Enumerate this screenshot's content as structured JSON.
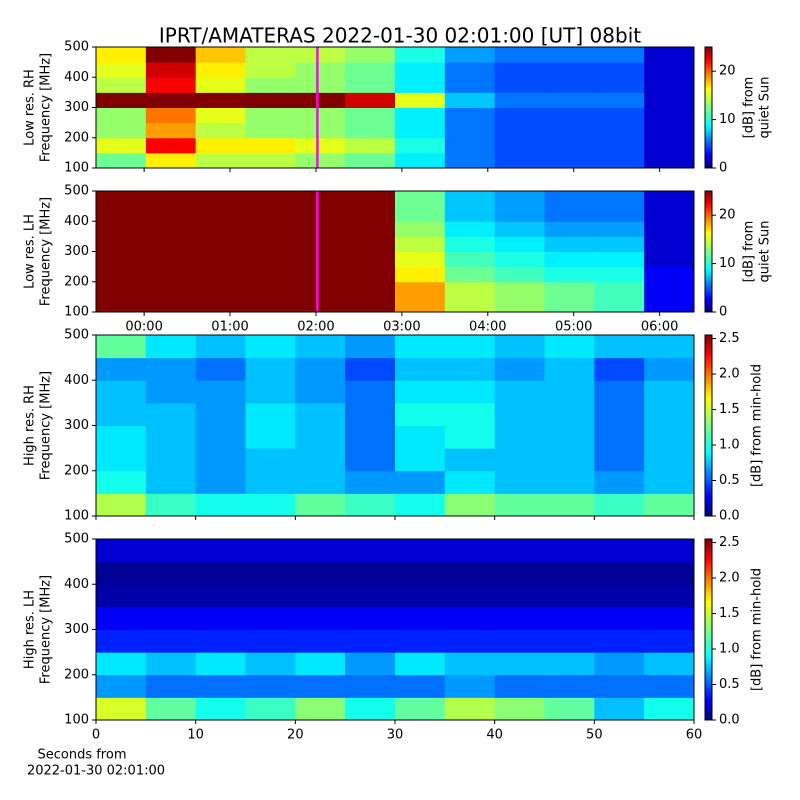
{
  "title": "IPRT/AMATERAS 2022-01-30 02:01:00 [UT]   08bit",
  "chart_data": [
    {
      "type": "heatmap",
      "ylabel": [
        "Low res. RH",
        "Frequency [MHz]"
      ],
      "colorbar_label": [
        "[dB] from",
        "quiet Sun"
      ],
      "xlim": [
        -0.56,
        6.4
      ],
      "xticks": [
        0,
        1,
        2,
        3,
        4,
        5,
        6
      ],
      "ylim": [
        100,
        500
      ],
      "yticks": [
        100,
        200,
        300,
        400,
        500
      ],
      "clim": [
        0,
        25
      ],
      "cticks": [
        0,
        10,
        20
      ],
      "cursor": {
        "x": 2.0167,
        "color": "#ff00ff"
      },
      "z": [
        [
          12,
          16,
          14,
          14,
          13,
          12,
          9,
          6,
          5,
          5,
          5,
          2
        ],
        [
          15,
          22,
          16,
          16,
          15,
          14,
          10,
          6,
          5,
          5,
          5,
          2
        ],
        [
          13,
          18,
          14,
          13,
          13,
          12,
          9,
          6,
          5,
          5,
          5,
          2
        ],
        [
          13,
          19,
          15,
          13,
          13,
          12,
          9,
          6,
          5,
          5,
          5,
          2
        ],
        [
          25,
          25,
          25,
          25,
          25,
          23,
          15,
          8,
          6,
          6,
          6,
          2
        ],
        [
          14,
          22,
          15,
          13,
          13,
          12,
          9,
          6,
          5,
          5,
          5,
          2
        ],
        [
          15,
          23,
          16,
          14,
          13,
          12,
          9,
          6,
          5,
          5,
          5,
          2
        ],
        [
          16,
          25,
          17,
          14,
          14,
          13,
          10,
          7,
          6,
          6,
          6,
          2
        ]
      ]
    },
    {
      "type": "heatmap",
      "ylabel": [
        "Low res. LH",
        "Frequency [MHz]"
      ],
      "colorbar_label": [
        "[dB] from",
        "quiet Sun"
      ],
      "xlim": [
        -0.56,
        6.4
      ],
      "xticks": [
        {
          "value": 0,
          "label": "00:00"
        },
        {
          "value": 1,
          "label": "01:00"
        },
        {
          "value": 2,
          "label": "02:00"
        },
        {
          "value": 3,
          "label": "03:00"
        },
        {
          "value": 4,
          "label": "04:00"
        },
        {
          "value": 5,
          "label": "05:00"
        },
        {
          "value": 6,
          "label": "06:00"
        }
      ],
      "ylim": [
        100,
        500
      ],
      "yticks": [
        100,
        200,
        300,
        400,
        500
      ],
      "clim": [
        0,
        25
      ],
      "cticks": [
        0,
        10,
        20
      ],
      "cursor": {
        "x": 2.0167,
        "color": "#ff00ff"
      },
      "z": [
        [
          25,
          25,
          25,
          25,
          25,
          25,
          18,
          14,
          13,
          12,
          11,
          3
        ],
        [
          25,
          25,
          25,
          25,
          25,
          25,
          18,
          14,
          13,
          12,
          11,
          3
        ],
        [
          25,
          25,
          25,
          25,
          25,
          25,
          16,
          12,
          11,
          10,
          10,
          3
        ],
        [
          25,
          25,
          25,
          25,
          25,
          25,
          15,
          11,
          10,
          9,
          9,
          2
        ],
        [
          25,
          25,
          25,
          25,
          25,
          25,
          14,
          10,
          9,
          8,
          8,
          2
        ],
        [
          25,
          25,
          25,
          25,
          25,
          25,
          13,
          9,
          8,
          7,
          7,
          2
        ],
        [
          25,
          25,
          25,
          25,
          25,
          25,
          12,
          8,
          7,
          6,
          6,
          2
        ],
        [
          25,
          25,
          25,
          25,
          25,
          25,
          12,
          8,
          7,
          6,
          6,
          2
        ]
      ]
    },
    {
      "type": "heatmap",
      "ylabel": [
        "High res. RH",
        "Frequency [MHz]"
      ],
      "colorbar_label": [
        "[dB] from min-hold"
      ],
      "xlim": [
        0,
        60
      ],
      "xticks": [
        0,
        10,
        20,
        30,
        40,
        50,
        60
      ],
      "ylim": [
        100,
        500
      ],
      "yticks": [
        100,
        200,
        300,
        400,
        500
      ],
      "clim": [
        0,
        2.55
      ],
      "cticks": [
        {
          "value": 0,
          "label": "0.0"
        },
        {
          "value": 0.5,
          "label": "0.5"
        },
        {
          "value": 1,
          "label": "1.0"
        },
        {
          "value": 1.5,
          "label": "1.5"
        },
        {
          "value": 2,
          "label": "2.0"
        },
        {
          "value": 2.5,
          "label": "2.5"
        }
      ],
      "z": [
        [
          1.4,
          1.1,
          1.0,
          1.0,
          1.2,
          1.1,
          1.0,
          1.3,
          1.2,
          1.2,
          1.1,
          1.2
        ],
        [
          1.0,
          0.8,
          0.7,
          0.8,
          0.8,
          0.7,
          0.7,
          0.9,
          0.8,
          0.8,
          0.7,
          0.8
        ],
        [
          0.9,
          0.8,
          0.7,
          0.8,
          0.8,
          0.6,
          0.9,
          0.8,
          0.8,
          0.8,
          0.6,
          0.8
        ],
        [
          0.9,
          0.8,
          0.7,
          0.9,
          0.8,
          0.6,
          0.9,
          1.0,
          0.8,
          0.8,
          0.6,
          0.8
        ],
        [
          0.8,
          0.8,
          0.7,
          0.9,
          0.8,
          0.6,
          1.0,
          1.0,
          0.8,
          0.8,
          0.6,
          0.8
        ],
        [
          0.8,
          0.7,
          0.7,
          0.8,
          0.7,
          0.6,
          0.9,
          0.9,
          0.8,
          0.8,
          0.6,
          0.8
        ],
        [
          0.7,
          0.7,
          0.6,
          0.8,
          0.7,
          0.5,
          0.8,
          0.8,
          0.7,
          0.8,
          0.5,
          0.7
        ],
        [
          1.2,
          0.9,
          0.8,
          0.9,
          0.8,
          0.7,
          0.9,
          0.9,
          0.8,
          0.9,
          0.8,
          0.8
        ]
      ]
    },
    {
      "type": "heatmap",
      "ylabel": [
        "High res. LH",
        "Frequency [MHz]"
      ],
      "colorbar_label": [
        "[dB] from min-hold"
      ],
      "xlabel": [
        "Seconds from",
        "2022-01-30 02:01:00"
      ],
      "xlim": [
        0,
        60
      ],
      "xticks": [
        0,
        10,
        20,
        30,
        40,
        50,
        60
      ],
      "ylim": [
        100,
        500
      ],
      "yticks": [
        100,
        200,
        300,
        400,
        500
      ],
      "clim": [
        0,
        2.55
      ],
      "cticks": [
        {
          "value": 0,
          "label": "0.0"
        },
        {
          "value": 0.5,
          "label": "0.5"
        },
        {
          "value": 1,
          "label": "1.0"
        },
        {
          "value": 1.5,
          "label": "1.5"
        },
        {
          "value": 2,
          "label": "2.0"
        },
        {
          "value": 2.5,
          "label": "2.5"
        }
      ],
      "z": [
        [
          1.5,
          1.2,
          1.0,
          1.1,
          1.3,
          1.0,
          1.2,
          1.4,
          1.3,
          1.2,
          0.8,
          1.0
        ],
        [
          0.7,
          0.6,
          0.6,
          0.6,
          0.6,
          0.6,
          0.6,
          0.7,
          0.6,
          0.6,
          0.6,
          0.6
        ],
        [
          0.9,
          0.8,
          0.9,
          0.8,
          0.9,
          0.7,
          0.9,
          0.8,
          0.8,
          0.8,
          0.7,
          0.8
        ],
        [
          0.4,
          0.4,
          0.4,
          0.4,
          0.4,
          0.4,
          0.4,
          0.4,
          0.4,
          0.4,
          0.4,
          0.4
        ],
        [
          0.3,
          0.3,
          0.3,
          0.3,
          0.3,
          0.3,
          0.3,
          0.3,
          0.3,
          0.3,
          0.3,
          0.3
        ],
        [
          0.1,
          0.1,
          0.1,
          0.1,
          0.1,
          0.1,
          0.1,
          0.1,
          0.1,
          0.1,
          0.1,
          0.1
        ],
        [
          0.05,
          0.05,
          0.05,
          0.05,
          0.05,
          0.05,
          0.05,
          0.05,
          0.05,
          0.05,
          0.05,
          0.05
        ],
        [
          0.2,
          0.2,
          0.2,
          0.2,
          0.2,
          0.2,
          0.2,
          0.2,
          0.2,
          0.2,
          0.2,
          0.2
        ]
      ]
    }
  ]
}
